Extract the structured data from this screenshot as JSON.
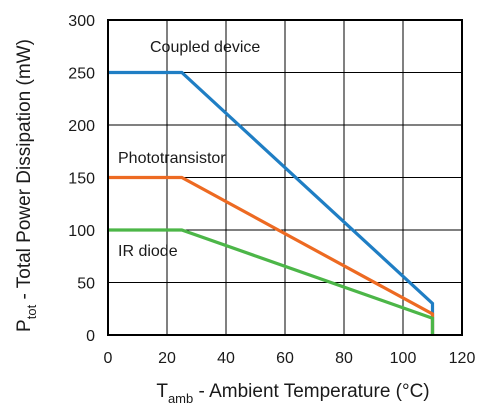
{
  "chart_data": {
    "type": "line",
    "title": "",
    "xlabel": {
      "main": "T",
      "sub": "amb",
      "rest": " - Ambient Temperature (°C)"
    },
    "ylabel": {
      "main": "P",
      "sub": "tot",
      "rest": " - Total Power Dissipation (mW)"
    },
    "xlim": [
      0,
      120
    ],
    "ylim": [
      0,
      300
    ],
    "x_ticks": [
      "0",
      "20",
      "40",
      "60",
      "80",
      "100",
      "120"
    ],
    "y_ticks": [
      "0",
      "50",
      "100",
      "150",
      "200",
      "250",
      "300"
    ],
    "grid": true,
    "legend": "none",
    "series": [
      {
        "name": "Coupled device",
        "color": "#1f7ec4",
        "points": [
          [
            0,
            250
          ],
          [
            25,
            250
          ],
          [
            110,
            30
          ],
          [
            110,
            0
          ]
        ]
      },
      {
        "name": "Phototransistor",
        "color": "#ed6a22",
        "points": [
          [
            0,
            150
          ],
          [
            25,
            150
          ],
          [
            110,
            20
          ],
          [
            110,
            0
          ]
        ]
      },
      {
        "name": "IR diode",
        "color": "#4cb648",
        "points": [
          [
            0,
            100
          ],
          [
            25,
            100
          ],
          [
            110,
            16
          ],
          [
            110,
            0
          ]
        ]
      }
    ]
  }
}
